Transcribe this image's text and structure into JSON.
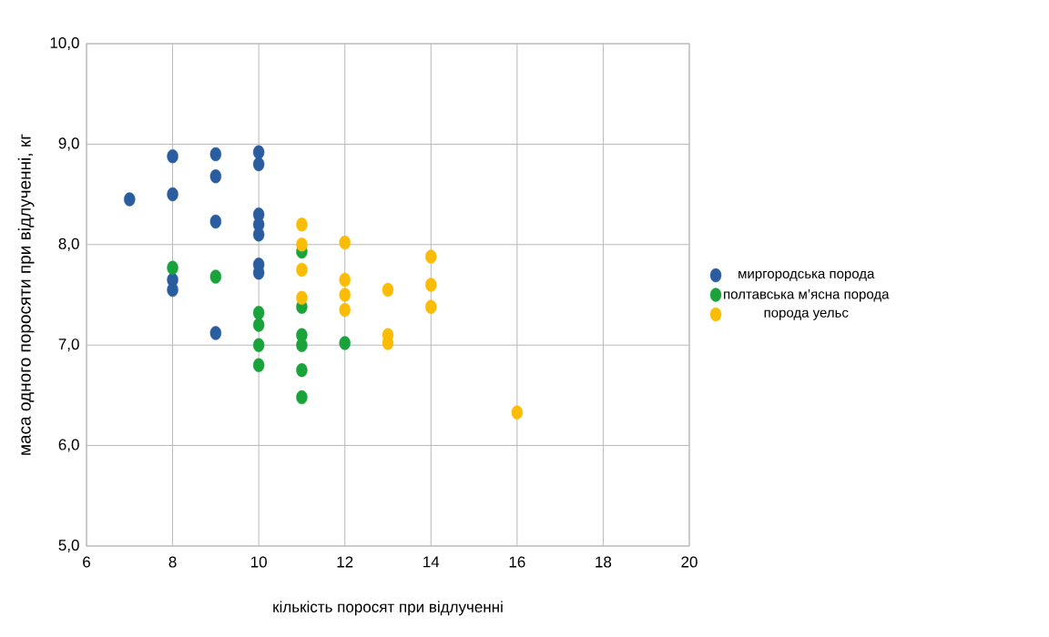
{
  "chart_data": {
    "type": "scatter",
    "xlabel": "кількість поросят при відлученні",
    "ylabel": "маса одного поросяти при відлученні, кг",
    "xlim": [
      6,
      20
    ],
    "xticks": [
      6,
      8,
      10,
      12,
      14,
      16,
      18,
      20
    ],
    "ylim": [
      5,
      10
    ],
    "yticks": [
      {
        "value": 5,
        "label": "5,0"
      },
      {
        "value": 6,
        "label": "6,0"
      },
      {
        "value": 7,
        "label": "7,0"
      },
      {
        "value": 8,
        "label": "8,0"
      },
      {
        "value": 9,
        "label": "9,0"
      },
      {
        "value": 10,
        "label": "10,0"
      }
    ],
    "grid": true,
    "legend": "right",
    "marker": "circle",
    "series": [
      {
        "name": "миргородська порода",
        "color": "#2a5d9f",
        "x": [
          7,
          8,
          8,
          8,
          8,
          9,
          9,
          9,
          9,
          10,
          10,
          10,
          10,
          10,
          10,
          10
        ],
        "values": [
          8.45,
          8.88,
          8.5,
          7.65,
          7.55,
          8.9,
          8.68,
          8.23,
          7.12,
          8.92,
          8.8,
          8.3,
          8.2,
          8.1,
          7.8,
          7.72
        ]
      },
      {
        "name": "полтавська м’ясна порода",
        "color": "#1aa33a",
        "x": [
          8,
          9,
          10,
          10,
          10,
          10,
          11,
          11,
          11,
          11,
          11,
          11,
          12
        ],
        "values": [
          7.77,
          7.68,
          7.32,
          7.2,
          7.0,
          6.8,
          7.93,
          7.38,
          7.1,
          7.0,
          6.75,
          6.48,
          7.02
        ]
      },
      {
        "name": "порода уельс",
        "color": "#fbbc05",
        "x": [
          11,
          11,
          11,
          11,
          12,
          12,
          12,
          12,
          13,
          13,
          13,
          14,
          14,
          14,
          16
        ],
        "values": [
          8.2,
          8.0,
          7.75,
          7.47,
          8.02,
          7.65,
          7.5,
          7.35,
          7.55,
          7.1,
          7.02,
          7.88,
          7.6,
          7.38,
          6.33
        ]
      }
    ]
  }
}
